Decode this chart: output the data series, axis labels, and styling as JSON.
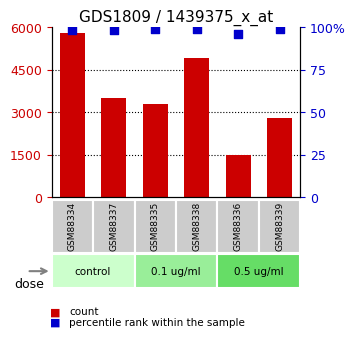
{
  "title": "GDS1809 / 1439375_x_at",
  "samples": [
    "GSM88334",
    "GSM88337",
    "GSM88335",
    "GSM88338",
    "GSM88336",
    "GSM88339"
  ],
  "counts": [
    5800,
    3500,
    3300,
    4900,
    1500,
    2800
  ],
  "percentiles": [
    98,
    98,
    99,
    99,
    96,
    99
  ],
  "dose_groups": [
    {
      "label": "control",
      "span": [
        0,
        2
      ],
      "color": "#ccffcc"
    },
    {
      "label": "0.1 ug/ml",
      "span": [
        2,
        4
      ],
      "color": "#99ee99"
    },
    {
      "label": "0.5 ug/ml",
      "span": [
        4,
        6
      ],
      "color": "#66dd66"
    }
  ],
  "ylim_left": [
    0,
    6000
  ],
  "ylim_right": [
    0,
    100
  ],
  "yticks_left": [
    0,
    1500,
    3000,
    4500,
    6000
  ],
  "ytick_labels_left": [
    "0",
    "1500",
    "3000",
    "4500",
    "6000"
  ],
  "yticks_right": [
    0,
    25,
    50,
    75,
    100
  ],
  "ytick_labels_right": [
    "0",
    "25",
    "50",
    "75",
    "100%"
  ],
  "bar_color": "#cc0000",
  "dot_color": "#0000cc",
  "dot_size": 40,
  "bar_width": 0.6,
  "grid_color": "black",
  "grid_style": "dotted",
  "sample_box_color": "#cccccc",
  "dose_label": "dose",
  "legend_count_label": "count",
  "legend_percentile_label": "percentile rank within the sample",
  "title_fontsize": 11,
  "tick_fontsize": 9,
  "label_fontsize": 9
}
